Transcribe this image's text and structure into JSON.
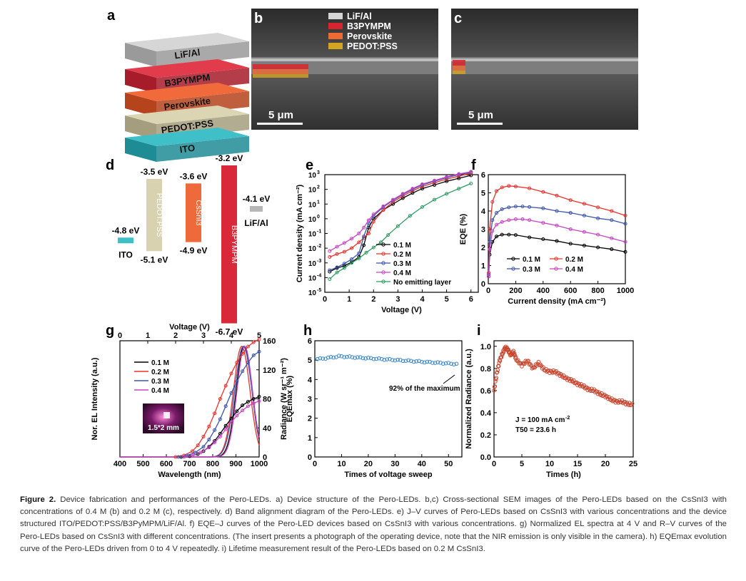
{
  "panels": {
    "a": {
      "letter": "a",
      "layers": [
        {
          "label": "LiF/Al",
          "color": "#d6d6d6",
          "edge": "#9a9a9a"
        },
        {
          "label": "B3PYMPM",
          "color": "#e23b4b",
          "edge": "#a61c2a"
        },
        {
          "label": "Perovskite",
          "color": "#f06a3c",
          "edge": "#b5431c"
        },
        {
          "label": "PEDOT:PSS",
          "color": "#dcd5b4",
          "edge": "#a59e7e"
        },
        {
          "label": "ITO",
          "color": "#3fc0c9",
          "edge": "#1e8c95"
        }
      ]
    },
    "b": {
      "letter": "b",
      "legend": [
        {
          "label": "LiF/Al",
          "color": "#d4d4d4"
        },
        {
          "label": "B3PYMPM",
          "color": "#d8242e"
        },
        {
          "label": "Perovskite",
          "color": "#ef6a32"
        },
        {
          "label": "PEDOT:PSS",
          "color": "#d4a520"
        }
      ],
      "scalebar": "5 μm"
    },
    "c": {
      "letter": "c",
      "scalebar": "5 μm"
    },
    "d": {
      "letter": "d",
      "levels": [
        {
          "name": "ITO",
          "top": "-4.8 eV",
          "bottom": "",
          "color": "#3fbfc8"
        },
        {
          "name": "PEDOT:PSS",
          "top": "-3.5 eV",
          "bottom": "-5.1 eV",
          "color": "#d9d2b1"
        },
        {
          "name": "CsSnI3",
          "top": "-3.6 eV",
          "bottom": "-4.9 eV",
          "color": "#ef6a3a"
        },
        {
          "name": "B3PYMPM",
          "top": "-3.2 eV",
          "bottom": "-6.7 eV",
          "color": "#d8283a"
        },
        {
          "name": "LiF/Al",
          "top": "-4.1 eV",
          "bottom": "",
          "color": "#b6b6b6"
        }
      ]
    },
    "e": {
      "letter": "e"
    },
    "f": {
      "letter": "f"
    },
    "g": {
      "letter": "g",
      "inset": "1.5*2 mm"
    },
    "h": {
      "letter": "h",
      "annotation": "92% of the maximum"
    },
    "i": {
      "letter": "i",
      "annotation_j": "J = 100 mA cm",
      "annotation_t": "T50 = 23.6 h"
    }
  },
  "chart_data": [
    {
      "id": "e",
      "type": "line",
      "title": "",
      "xlabel": "Voltage (V)",
      "ylabel": "Current density (mA cm⁻²)",
      "xlim": [
        0,
        6.3
      ],
      "ylim": [
        -5,
        3
      ],
      "yscale": "log",
      "xticks": [
        0,
        1,
        2,
        3,
        4,
        5,
        6
      ],
      "series": [
        {
          "name": "0.1 M",
          "color": "#000000",
          "x": [
            0.2,
            0.5,
            0.8,
            1.1,
            1.4,
            1.6,
            1.8,
            2,
            2.4,
            2.8,
            3.2,
            3.6,
            4,
            4.5,
            5,
            5.5,
            6
          ],
          "y": [
            -3.6,
            -3.35,
            -3.2,
            -2.95,
            -2.6,
            -1.8,
            -0.6,
            0,
            0.6,
            1.0,
            1.4,
            1.75,
            2.05,
            2.3,
            2.55,
            2.75,
            2.95
          ]
        },
        {
          "name": "0.2 M",
          "color": "#e8312d",
          "x": [
            0.2,
            0.5,
            0.8,
            1.1,
            1.4,
            1.6,
            1.8,
            2,
            2.4,
            2.8,
            3.2,
            3.6,
            4,
            4.5,
            5,
            5.5,
            6
          ],
          "y": [
            -2.6,
            -2.4,
            -2.25,
            -2.0,
            -1.6,
            -1.3,
            -1.0,
            -0.2,
            0.6,
            1.15,
            1.55,
            1.9,
            2.2,
            2.45,
            2.7,
            2.9,
            3.1
          ]
        },
        {
          "name": "0.3 M",
          "color": "#3c55a8",
          "x": [
            0.2,
            0.5,
            0.8,
            1.1,
            1.4,
            1.6,
            1.8,
            2,
            2.4,
            2.8,
            3.2,
            3.6,
            4,
            4.5,
            5,
            5.5,
            6
          ],
          "y": [
            -3.5,
            -3.3,
            -3.05,
            -2.75,
            -2.35,
            -1.2,
            -0.3,
            0.2,
            0.8,
            1.25,
            1.65,
            2.0,
            2.3,
            2.55,
            2.8,
            3.0,
            3.15
          ]
        },
        {
          "name": "0.4 M",
          "color": "#c843c2",
          "x": [
            0.2,
            0.5,
            0.8,
            1.1,
            1.4,
            1.6,
            1.8,
            2,
            2.4,
            2.8,
            3.2,
            3.6,
            4,
            4.5,
            5,
            5.5,
            6
          ],
          "y": [
            -2.2,
            -1.9,
            -1.65,
            -1.35,
            -1.0,
            -0.6,
            -0.1,
            0.3,
            0.85,
            1.3,
            1.7,
            2.05,
            2.35,
            2.6,
            2.85,
            3.05,
            3.2
          ]
        },
        {
          "name": "No emitting layer",
          "color": "#2e9b62",
          "x": [
            0.2,
            0.5,
            0.8,
            1.1,
            1.4,
            1.7,
            2,
            2.3,
            2.6,
            3,
            3.5,
            4,
            4.5,
            5,
            5.5,
            6
          ],
          "y": [
            -4.1,
            -3.65,
            -3.35,
            -3.0,
            -2.7,
            -2.3,
            -1.95,
            -1.6,
            -1.1,
            -0.5,
            0.2,
            0.8,
            1.3,
            1.7,
            2.05,
            2.4
          ]
        }
      ]
    },
    {
      "id": "f",
      "type": "line",
      "title": "",
      "xlabel": "Current density (mA cm⁻²)",
      "ylabel": "EQE (%)",
      "xlim": [
        0,
        1000
      ],
      "ylim": [
        0,
        6
      ],
      "xticks": [
        0,
        200,
        400,
        600,
        800,
        1000
      ],
      "yticks": [
        0,
        1,
        2,
        3,
        4,
        5,
        6
      ],
      "series": [
        {
          "name": "0.1 M",
          "color": "#000000",
          "x": [
            3,
            10,
            30,
            60,
            100,
            150,
            200,
            300,
            400,
            500,
            600,
            700,
            800,
            900,
            1000
          ],
          "y": [
            0.4,
            1.6,
            2.3,
            2.6,
            2.7,
            2.7,
            2.68,
            2.55,
            2.45,
            2.35,
            2.2,
            2.1,
            2.0,
            1.9,
            1.75
          ]
        },
        {
          "name": "0.2 M",
          "color": "#e8312d",
          "x": [
            3,
            10,
            30,
            60,
            100,
            150,
            200,
            300,
            400,
            500,
            600,
            700,
            800,
            900,
            1000
          ],
          "y": [
            0.6,
            3.0,
            4.5,
            5.1,
            5.3,
            5.38,
            5.35,
            5.25,
            5.05,
            4.85,
            4.6,
            4.4,
            4.2,
            4.0,
            3.75
          ]
        },
        {
          "name": "0.3 M",
          "color": "#3c55a8",
          "x": [
            3,
            10,
            30,
            60,
            100,
            150,
            200,
            250,
            300,
            400,
            500,
            600,
            700,
            800,
            900,
            1000
          ],
          "y": [
            0.5,
            2.3,
            3.5,
            3.9,
            4.1,
            4.2,
            4.25,
            4.25,
            4.22,
            4.15,
            4.0,
            3.9,
            3.75,
            3.6,
            3.5,
            3.3
          ]
        },
        {
          "name": "0.4 M",
          "color": "#c843c2",
          "x": [
            3,
            10,
            30,
            60,
            100,
            150,
            200,
            250,
            300,
            400,
            500,
            600,
            700,
            800,
            900,
            1000
          ],
          "y": [
            0.4,
            1.9,
            2.9,
            3.25,
            3.4,
            3.5,
            3.55,
            3.55,
            3.5,
            3.35,
            3.2,
            3.0,
            2.85,
            2.7,
            2.5,
            2.3
          ]
        }
      ]
    },
    {
      "id": "g",
      "type": "line",
      "title": "",
      "xlabel": "Wavelength (nm)",
      "ylabel": "Nor. EL Intensity (a.u.)",
      "x2label": "Voltage (V)",
      "y2label": "Radiance (W sr⁻¹ m⁻²)",
      "xlim": [
        400,
        1000
      ],
      "x2lim": [
        0,
        5
      ],
      "y2lim": [
        0,
        160
      ],
      "xticks": [
        400,
        500,
        600,
        700,
        800,
        900,
        1000
      ],
      "x2ticks": [
        0,
        1,
        2,
        3,
        4,
        5
      ],
      "y2ticks": [
        0,
        40,
        80,
        120,
        160
      ],
      "el_series": [
        {
          "name": "0.1 M",
          "color": "#000000",
          "peak": 935,
          "width": 48
        },
        {
          "name": "0.2 M",
          "color": "#e8312d",
          "peak": 925,
          "width": 50
        },
        {
          "name": "0.3 M",
          "color": "#3c55a8",
          "peak": 932,
          "width": 52
        },
        {
          "name": "0.4 M",
          "color": "#c843c2",
          "peak": 938,
          "width": 47
        }
      ],
      "rv_series": [
        {
          "name": "0.1 M",
          "color": "#000000",
          "x": [
            2.2,
            2.5,
            2.8,
            3.0,
            3.2,
            3.4,
            3.6,
            3.8,
            4.0,
            4.2,
            4.4,
            4.6,
            4.8,
            5.0
          ],
          "y": [
            0,
            1,
            4,
            8,
            14,
            22,
            32,
            43,
            53,
            63,
            71,
            76,
            80,
            83
          ]
        },
        {
          "name": "0.2 M",
          "color": "#e8312d",
          "x": [
            2.0,
            2.3,
            2.6,
            2.8,
            3.0,
            3.2,
            3.4,
            3.6,
            3.8,
            4.0,
            4.2,
            4.4,
            4.6,
            4.8,
            5.0
          ],
          "y": [
            0,
            2,
            8,
            16,
            28,
            42,
            60,
            80,
            98,
            115,
            130,
            142,
            152,
            158,
            162
          ]
        },
        {
          "name": "0.3 M",
          "color": "#3c55a8",
          "x": [
            2.1,
            2.4,
            2.7,
            3.0,
            3.2,
            3.4,
            3.6,
            3.8,
            4.0,
            4.2,
            4.4,
            4.6,
            4.8,
            5.0
          ],
          "y": [
            0,
            2,
            6,
            14,
            24,
            37,
            52,
            70,
            88,
            104,
            118,
            130,
            140,
            145
          ]
        },
        {
          "name": "0.4 M",
          "color": "#c843c2",
          "x": [
            2.3,
            2.6,
            2.9,
            3.2,
            3.4,
            3.6,
            3.8,
            4.0,
            4.2,
            4.4,
            4.6,
            4.8,
            5.0
          ],
          "y": [
            0,
            2,
            6,
            13,
            20,
            28,
            38,
            48,
            57,
            64,
            70,
            74,
            77
          ]
        }
      ]
    },
    {
      "id": "h",
      "type": "scatter",
      "title": "",
      "xlabel": "Times of voltage sweep",
      "ylabel": "EQEmax (%)",
      "xlim": [
        0,
        55
      ],
      "ylim": [
        0,
        6
      ],
      "xticks": [
        0,
        10,
        20,
        30,
        40,
        50
      ],
      "yticks": [
        0,
        1,
        2,
        3,
        4,
        5,
        6
      ],
      "series": [
        {
          "name": "",
          "color": "#3a86c8",
          "start": 5.05,
          "peak": 5.2,
          "end": 4.8,
          "count": 53
        }
      ]
    },
    {
      "id": "i",
      "type": "line",
      "title": "",
      "xlabel": "Times (h)",
      "ylabel": "Normalized Radiance (a.u.)",
      "xlim": [
        0,
        25
      ],
      "ylim": [
        0,
        1.05
      ],
      "xticks": [
        0,
        5,
        10,
        15,
        20,
        25
      ],
      "yticks": [
        0.0,
        0.2,
        0.4,
        0.6,
        0.8,
        1.0
      ],
      "series": [
        {
          "name": "",
          "color": "#c8452e",
          "x": [
            0,
            0.5,
            1,
            1.5,
            2,
            2.5,
            3,
            3.5,
            4,
            5,
            6,
            7,
            8,
            9,
            10,
            11,
            12,
            13,
            14,
            15,
            16,
            17,
            18,
            19,
            20,
            21,
            22,
            23,
            24,
            25
          ],
          "y": [
            0.6,
            0.75,
            0.87,
            0.93,
            0.99,
            0.97,
            0.92,
            0.95,
            0.88,
            0.83,
            0.87,
            0.8,
            0.85,
            0.79,
            0.77,
            0.77,
            0.74,
            0.71,
            0.69,
            0.66,
            0.64,
            0.61,
            0.6,
            0.57,
            0.55,
            0.52,
            0.5,
            0.5,
            0.48,
            0.47
          ]
        }
      ]
    }
  ],
  "caption": {
    "label": "Figure 2.",
    "text": "Device fabrication and performances of the Pero-LEDs. a) Device structure of the Pero-LEDs. b,c) Cross-sectional SEM images of the Pero-LEDs based on the CsSnI3 with concentrations of 0.4 M (b) and 0.2 M (c), respectively. d) Band alignment diagram of the Pero-LEDs. e) J–V curves of Pero-LEDs based on CsSnI3 with various concentrations and the device structured ITO/PEDOT:PSS/B3PyMPM/LiF/Al. f) EQE–J curves of the Pero-LED devices based on CsSnI3 with various concentrations. g) Normalized EL spectra at 4 V and R–V curves of the Pero-LEDs based on CsSnI3 with different concentrations. (The insert presents a photograph of the operating device, note that the NIR emission is only visible in the camera). h) EQEmax evolution curve of the Pero-LEDs driven from 0 to 4 V repeatedly. i) Lifetime measurement result of the Pero-LEDs based on 0.2 M CsSnI3."
  }
}
